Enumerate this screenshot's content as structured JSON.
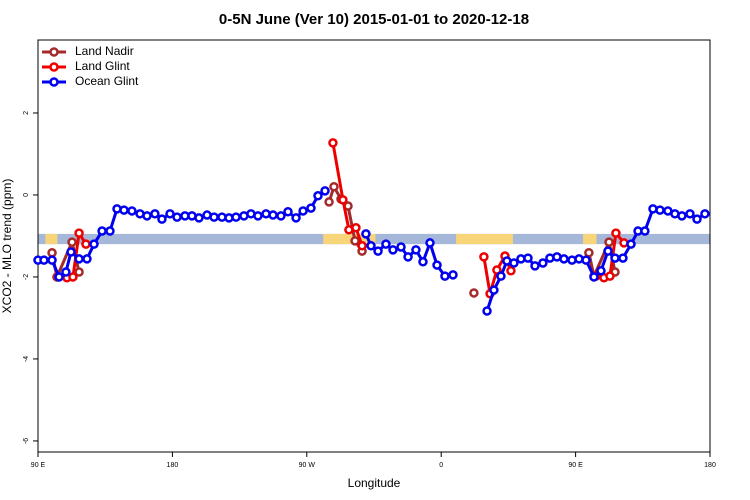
{
  "chart_data": {
    "type": "line",
    "title": "0-5N June (Ver 10)   2015-01-01 to 2020-12-18",
    "x_label": "Longitude",
    "y_label": "XCO2 - MLO trend (ppm)",
    "xlim": [
      90,
      540
    ],
    "xticks": [
      {
        "value": 90,
        "label": "90 E"
      },
      180,
      {
        "value": 270,
        "label": "90 W"
      },
      {
        "value": 360,
        "label": "0"
      },
      {
        "value": 450,
        "label": "90 E"
      },
      {
        "value": 540,
        "label": "180"
      }
    ],
    "ylim": [
      -6.27,
      3.78
    ],
    "yticks": [
      -6,
      -4,
      -2,
      0,
      2
    ],
    "legend": "top-left",
    "band": {
      "ylim": [
        -1.2,
        -0.95
      ],
      "ocean_color": "#a5b8d9",
      "land_color": "#f9d57a",
      "land": [
        [
          95,
          103
        ],
        [
          281,
          316
        ],
        [
          370,
          408
        ],
        [
          455,
          464
        ]
      ]
    },
    "series": [
      {
        "name": "Land Nadir",
        "color": "#a52a2a",
        "x": [
          99.4,
          102.7,
          112.8,
          117.5,
          null,
          284.9,
          288.2,
          292.9,
          297.6,
          302.3,
          307.0,
          null,
          381.9,
          null,
          458.9,
          462.3,
          472.4,
          476.4
        ],
        "values": [
          -1.41,
          -2.0,
          -1.15,
          -1.88,
          null,
          -0.17,
          0.2,
          -0.1,
          -0.27,
          -1.12,
          -1.37,
          null,
          -2.39,
          null,
          -1.41,
          -1.98,
          -1.15,
          -1.88
        ]
      },
      {
        "name": "Land Glint",
        "color": "#ee0000",
        "x": [
          109.4,
          113.4,
          117.5,
          122.1,
          null,
          287.5,
          294.2,
          298.2,
          302.9,
          307.0,
          null,
          388.6,
          392.7,
          397.3,
          402.7,
          406.7,
          null,
          463.6,
          469.0,
          473.0,
          477.0,
          482.4
        ],
        "values": [
          -2.02,
          -2.0,
          -0.93,
          -1.2,
          null,
          1.27,
          -0.12,
          -0.85,
          -0.8,
          -1.24,
          null,
          -1.51,
          -2.41,
          -1.83,
          -1.49,
          -1.85,
          null,
          -1.98,
          -2.02,
          -1.98,
          -0.93,
          -1.17
        ]
      },
      {
        "name": "Ocean Glint",
        "color": "#0000ee",
        "x": [
          90,
          94.0,
          99.4,
          104.1,
          108.7,
          112.1,
          117.5,
          122.8,
          127.5,
          132.9,
          138.2,
          142.9,
          147.6,
          152.9,
          158.3,
          163.0,
          168.3,
          173.0,
          178.4,
          183.1,
          188.4,
          193.1,
          197.8,
          203.2,
          207.9,
          213.2,
          217.9,
          222.6,
          227.9,
          232.6,
          237.3,
          242.7,
          247.4,
          252.7,
          257.4,
          262.8,
          267.5,
          272.8,
          277.5,
          282.2,
          null,
          309.6,
          313.0,
          317.7,
          323.0,
          327.7,
          333.1,
          337.8,
          343.1,
          347.8,
          352.5,
          357.2,
          362.5,
          367.9,
          null,
          390.7,
          395.3,
          400.0,
          404.0,
          408.7,
          413.4,
          418.1,
          422.8,
          428.1,
          432.8,
          437.5,
          442.2,
          447.6,
          452.3,
          457.0,
          462.3,
          467.0,
          471.7,
          476.4,
          481.7,
          487.1,
          491.8,
          496.4,
          501.8,
          506.5,
          511.8,
          516.5,
          521.2,
          526.6,
          531.3,
          536.6
        ],
        "values": [
          -1.59,
          -1.59,
          -1.59,
          -2.0,
          -1.88,
          -1.39,
          -1.56,
          -1.56,
          -1.2,
          -0.88,
          -0.88,
          -0.34,
          -0.37,
          -0.39,
          -0.46,
          -0.51,
          -0.46,
          -0.59,
          -0.46,
          -0.54,
          -0.51,
          -0.51,
          -0.56,
          -0.49,
          -0.54,
          -0.54,
          -0.56,
          -0.54,
          -0.51,
          -0.46,
          -0.51,
          -0.46,
          -0.49,
          -0.51,
          -0.41,
          -0.56,
          -0.39,
          -0.32,
          -0.02,
          0.1,
          null,
          -0.95,
          -1.24,
          -1.37,
          -1.2,
          -1.34,
          -1.27,
          -1.51,
          -1.34,
          -1.63,
          -1.17,
          -1.71,
          -1.98,
          -1.95,
          null,
          -2.83,
          -2.32,
          -1.98,
          -1.61,
          -1.66,
          -1.56,
          -1.54,
          -1.73,
          -1.66,
          -1.54,
          -1.51,
          -1.56,
          -1.59,
          -1.56,
          -1.59,
          -2.0,
          -1.85,
          -1.37,
          -1.54,
          -1.54,
          -1.2,
          -0.88,
          -0.88,
          -0.34,
          -0.37,
          -0.39,
          -0.46,
          -0.51,
          -0.46,
          -0.59,
          -0.46
        ]
      }
    ]
  }
}
